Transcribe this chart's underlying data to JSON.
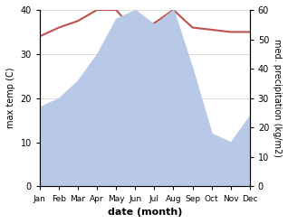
{
  "months": [
    "Jan",
    "Feb",
    "Mar",
    "Apr",
    "May",
    "Jun",
    "Jul",
    "Aug",
    "Sep",
    "Oct",
    "Nov",
    "Dec"
  ],
  "temperature": [
    34,
    36,
    37.5,
    40,
    40,
    35,
    37,
    40,
    36,
    35.5,
    35,
    35
  ],
  "precipitation": [
    27,
    30,
    36,
    45,
    57,
    60,
    55,
    60,
    40,
    18,
    15,
    24
  ],
  "temp_color": "#c0504d",
  "precip_color": "#b8c9e8",
  "ylabel_left": "max temp (C)",
  "ylabel_right": "med. precipitation (kg/m2)",
  "xlabel": "date (month)",
  "ylim_left": [
    0,
    40
  ],
  "ylim_right": [
    0,
    60
  ],
  "yticks_left": [
    0,
    10,
    20,
    30,
    40
  ],
  "yticks_right": [
    0,
    10,
    20,
    30,
    40,
    50,
    60
  ],
  "bg_color": "#ffffff",
  "grid_color": "#d0d0d0"
}
